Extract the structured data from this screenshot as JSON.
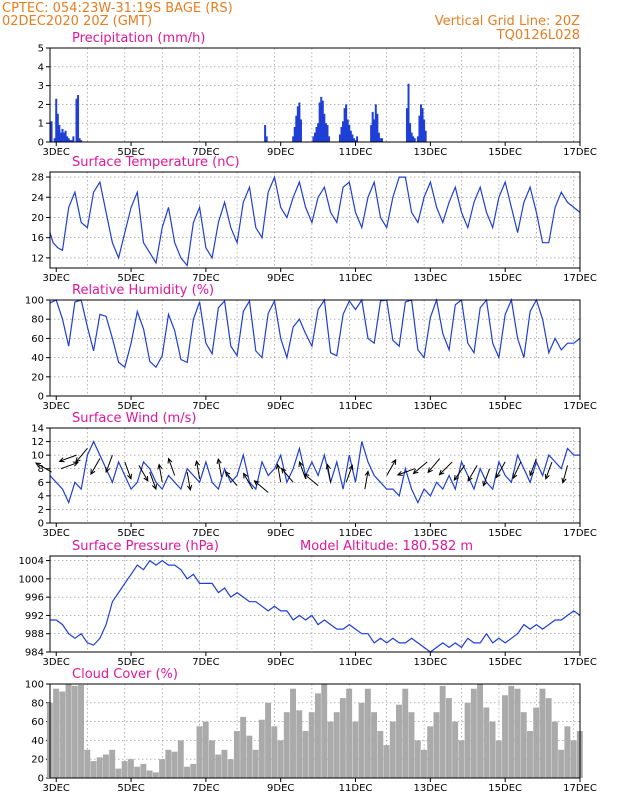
{
  "header": {
    "left_line1": "CPTEC:  054:23W-31:19S  BAGE (RS)",
    "left_line2": "02DEC2020 20Z (GMT)",
    "right_line1": "Vertical Grid Line: 20Z",
    "right_line2": "TQ0126L028"
  },
  "x_axis": {
    "start_hour": 20,
    "end_hour": 360,
    "tick_labels": [
      "3DEC",
      "5DEC",
      "7DEC",
      "9DEC",
      "11DEC",
      "13DEC",
      "15DEC",
      "17DEC"
    ],
    "tick_hours": [
      24,
      72,
      120,
      168,
      216,
      264,
      312,
      360
    ]
  },
  "colors": {
    "line": "#1f3fd6",
    "bar": "#1f3fd6",
    "cloud": "#aaaaaa",
    "title": "#e0179b",
    "header": "#e67e22"
  },
  "chart_data": [
    {
      "id": "precip",
      "type": "bar",
      "title": "Precipitation (mm/h)",
      "ylim": [
        0,
        5
      ],
      "yticks": [
        0,
        1,
        2,
        3,
        4,
        5
      ],
      "x": [
        21,
        23,
        24,
        25,
        26,
        27,
        28,
        29,
        30,
        31,
        32,
        33,
        34,
        35,
        37,
        38,
        39,
        40,
        158,
        159,
        176,
        177,
        178,
        179,
        180,
        181,
        189,
        190,
        191,
        192,
        193,
        194,
        195,
        196,
        197,
        198,
        199,
        206,
        207,
        208,
        209,
        210,
        211,
        212,
        213,
        214,
        215,
        216,
        217,
        226,
        227,
        228,
        229,
        230,
        231,
        232,
        233,
        249,
        250,
        251,
        252,
        253,
        254,
        256,
        257,
        258,
        259,
        260,
        261
      ],
      "values": [
        1.1,
        0.2,
        2.3,
        1.5,
        0.9,
        0.5,
        0.7,
        0.5,
        0.6,
        0.3,
        0.2,
        0.1,
        0.1,
        0.3,
        2.3,
        2.5,
        0.2,
        0.1,
        0.9,
        0.3,
        0.3,
        0.8,
        1.4,
        1.9,
        2.1,
        1.2,
        0.3,
        0.5,
        0.8,
        1.0,
        2.1,
        2.4,
        2.2,
        1.5,
        1.0,
        0.9,
        0.3,
        0.4,
        0.8,
        1.1,
        1.8,
        2.0,
        1.2,
        0.9,
        0.6,
        0.4,
        0.2,
        0.1,
        0.3,
        0.9,
        1.6,
        1.2,
        2.0,
        1.5,
        0.5,
        0.2,
        0.2,
        1.8,
        3.1,
        1.0,
        0.5,
        0.3,
        0.2,
        0.3,
        1.4,
        2.0,
        1.8,
        1.2,
        0.6
      ]
    },
    {
      "id": "temp",
      "type": "line",
      "title": "Surface Temperature (nC)",
      "ylim": [
        10,
        29
      ],
      "yticks": [
        12,
        16,
        20,
        24,
        28
      ],
      "x": [
        20,
        22,
        25,
        28,
        32,
        36,
        40,
        44,
        48,
        52,
        56,
        60,
        64,
        68,
        72,
        76,
        80,
        84,
        88,
        92,
        96,
        100,
        104,
        108,
        112,
        116,
        120,
        124,
        128,
        132,
        136,
        140,
        144,
        148,
        152,
        156,
        160,
        164,
        168,
        172,
        176,
        180,
        184,
        188,
        192,
        196,
        200,
        204,
        208,
        212,
        216,
        220,
        224,
        228,
        232,
        236,
        240,
        244,
        248,
        252,
        256,
        260,
        264,
        268,
        272,
        276,
        280,
        284,
        288,
        292,
        296,
        300,
        304,
        308,
        312,
        316,
        320,
        324,
        328,
        332,
        336,
        340,
        344,
        348,
        352,
        356,
        360
      ],
      "values": [
        17,
        15,
        14,
        13.5,
        22,
        25,
        19,
        18,
        25,
        27,
        21,
        15,
        12,
        17,
        22,
        25,
        15,
        13,
        11,
        18,
        22,
        15,
        12,
        10.5,
        19,
        22,
        14,
        12,
        19,
        23,
        18,
        15,
        23,
        26,
        18,
        16,
        25,
        28,
        22,
        20,
        24,
        27,
        22,
        19,
        24,
        26,
        21,
        19,
        26,
        27,
        21,
        18,
        24,
        27,
        20,
        18,
        24,
        28,
        28,
        21,
        19,
        24,
        27,
        22,
        19,
        23,
        26,
        21,
        18,
        23,
        26,
        21,
        18,
        24,
        27,
        22,
        17,
        23,
        26,
        21,
        15,
        15,
        22,
        25,
        23,
        22,
        21
      ]
    },
    {
      "id": "rh",
      "type": "line",
      "title": "Relative Humidity (%)",
      "ylim": [
        0,
        100
      ],
      "yticks": [
        0,
        20,
        40,
        60,
        80,
        100
      ],
      "x": [
        20,
        24,
        28,
        32,
        36,
        40,
        44,
        48,
        52,
        56,
        60,
        64,
        68,
        72,
        76,
        80,
        84,
        88,
        92,
        96,
        100,
        104,
        108,
        112,
        116,
        120,
        124,
        128,
        132,
        136,
        140,
        144,
        148,
        152,
        156,
        160,
        164,
        168,
        172,
        176,
        180,
        184,
        188,
        192,
        196,
        200,
        204,
        208,
        212,
        216,
        220,
        224,
        228,
        232,
        236,
        240,
        244,
        248,
        252,
        256,
        260,
        264,
        268,
        272,
        276,
        280,
        284,
        288,
        292,
        296,
        300,
        304,
        308,
        312,
        316,
        320,
        324,
        328,
        332,
        336,
        340,
        344,
        348,
        352,
        356,
        360
      ],
      "values": [
        97,
        100,
        80,
        52,
        98,
        100,
        72,
        47,
        85,
        83,
        60,
        35,
        30,
        55,
        88,
        70,
        36,
        30,
        42,
        85,
        68,
        38,
        35,
        80,
        98,
        55,
        44,
        92,
        99,
        52,
        42,
        88,
        99,
        47,
        40,
        86,
        99,
        60,
        40,
        72,
        80,
        65,
        52,
        90,
        100,
        45,
        42,
        85,
        99,
        90,
        100,
        60,
        55,
        99,
        100,
        58,
        52,
        98,
        100,
        48,
        40,
        82,
        100,
        65,
        48,
        95,
        100,
        55,
        45,
        92,
        100,
        55,
        40,
        85,
        100,
        60,
        40,
        88,
        100,
        80,
        45,
        60,
        48,
        55,
        55,
        60
      ]
    },
    {
      "id": "wind",
      "type": "line",
      "title": "Surface Wind (m/s)",
      "ylim": [
        0,
        14
      ],
      "yticks": [
        0,
        2,
        4,
        6,
        8,
        10,
        12,
        14
      ],
      "x": [
        20,
        24,
        28,
        32,
        36,
        40,
        44,
        48,
        52,
        56,
        60,
        64,
        68,
        72,
        76,
        80,
        84,
        88,
        92,
        96,
        100,
        104,
        108,
        112,
        116,
        120,
        124,
        128,
        132,
        136,
        140,
        144,
        148,
        152,
        156,
        160,
        164,
        168,
        172,
        176,
        180,
        184,
        188,
        192,
        196,
        200,
        204,
        208,
        212,
        216,
        220,
        224,
        228,
        232,
        236,
        240,
        244,
        248,
        252,
        256,
        260,
        264,
        268,
        272,
        276,
        280,
        284,
        288,
        292,
        296,
        300,
        304,
        308,
        312,
        316,
        320,
        324,
        328,
        332,
        336,
        340,
        344,
        348,
        352,
        356,
        360
      ],
      "values": [
        7,
        6,
        5,
        3,
        6,
        5,
        10,
        12,
        10,
        8,
        6,
        9,
        7,
        5,
        6,
        9,
        8,
        6,
        5,
        7,
        6,
        5,
        8,
        7,
        6,
        9,
        6,
        5,
        8,
        6,
        7,
        10,
        6,
        5,
        9,
        7,
        8,
        10,
        6,
        8,
        11,
        7,
        9,
        7,
        10,
        6,
        9,
        5,
        10,
        6,
        12,
        9,
        7,
        6,
        5,
        5,
        4,
        8,
        5,
        3,
        5,
        4,
        6,
        5,
        7,
        5,
        9,
        7,
        5,
        8,
        6,
        5,
        9,
        7,
        6,
        10,
        8,
        6,
        9,
        7,
        10,
        9,
        8,
        11,
        10,
        10
      ],
      "vectors": [
        {
          "x": 21,
          "speed": 7.5,
          "dir_deg": 150
        },
        {
          "x": 27,
          "speed": 8,
          "dir_deg": 20
        },
        {
          "x": 37,
          "speed": 10,
          "dir_deg": 200
        },
        {
          "x": 44,
          "speed": 11,
          "dir_deg": 230
        },
        {
          "x": 52,
          "speed": 9.5,
          "dir_deg": 240
        },
        {
          "x": 60,
          "speed": 10,
          "dir_deg": 250
        },
        {
          "x": 68,
          "speed": 9,
          "dir_deg": 290
        },
        {
          "x": 77,
          "speed": 8.5,
          "dir_deg": 300
        },
        {
          "x": 84,
          "speed": 7.5,
          "dir_deg": 290
        },
        {
          "x": 92,
          "speed": 6,
          "dir_deg": 100
        },
        {
          "x": 100,
          "speed": 7,
          "dir_deg": 110
        },
        {
          "x": 108,
          "speed": 7.5,
          "dir_deg": 280
        },
        {
          "x": 116,
          "speed": 6.5,
          "dir_deg": 100
        },
        {
          "x": 130,
          "speed": 6.8,
          "dir_deg": 100
        },
        {
          "x": 140,
          "speed": 5.5,
          "dir_deg": 130
        },
        {
          "x": 150,
          "speed": 5,
          "dir_deg": 120
        },
        {
          "x": 160,
          "speed": 4.5,
          "dir_deg": 140
        },
        {
          "x": 168,
          "speed": 6,
          "dir_deg": 100
        },
        {
          "x": 176,
          "speed": 6,
          "dir_deg": 130
        },
        {
          "x": 184,
          "speed": 6.5,
          "dir_deg": 110
        },
        {
          "x": 192,
          "speed": 5.5,
          "dir_deg": 140
        },
        {
          "x": 200,
          "speed": 6,
          "dir_deg": 100
        },
        {
          "x": 210,
          "speed": 6,
          "dir_deg": 70
        },
        {
          "x": 222,
          "speed": 5,
          "dir_deg": 80
        },
        {
          "x": 236,
          "speed": 7,
          "dir_deg": 60
        },
        {
          "x": 254,
          "speed": 8,
          "dir_deg": 200
        },
        {
          "x": 262,
          "speed": 9,
          "dir_deg": 220
        },
        {
          "x": 270,
          "speed": 9.5,
          "dir_deg": 230
        },
        {
          "x": 278,
          "speed": 9,
          "dir_deg": 225
        },
        {
          "x": 286,
          "speed": 8.5,
          "dir_deg": 235
        },
        {
          "x": 294,
          "speed": 8.5,
          "dir_deg": 240
        },
        {
          "x": 302,
          "speed": 8,
          "dir_deg": 250
        },
        {
          "x": 312,
          "speed": 9,
          "dir_deg": 240
        },
        {
          "x": 322,
          "speed": 9,
          "dir_deg": 245
        },
        {
          "x": 332,
          "speed": 9.5,
          "dir_deg": 250
        },
        {
          "x": 342,
          "speed": 9,
          "dir_deg": 250
        },
        {
          "x": 352,
          "speed": 8.5,
          "dir_deg": 255
        }
      ]
    },
    {
      "id": "pressure",
      "type": "line",
      "title": "Surface Pressure (hPa)",
      "annotation": "Model Altitude: 180.582 m",
      "ylim": [
        984,
        1005
      ],
      "yticks": [
        984,
        988,
        992,
        996,
        1000,
        1004
      ],
      "x": [
        20,
        24,
        28,
        32,
        36,
        40,
        44,
        48,
        52,
        56,
        60,
        64,
        68,
        72,
        76,
        80,
        84,
        88,
        92,
        96,
        100,
        104,
        108,
        112,
        116,
        120,
        124,
        128,
        132,
        136,
        140,
        144,
        148,
        152,
        156,
        160,
        164,
        168,
        172,
        176,
        180,
        184,
        188,
        192,
        196,
        200,
        204,
        208,
        212,
        216,
        220,
        224,
        228,
        232,
        236,
        240,
        244,
        248,
        252,
        256,
        260,
        264,
        268,
        272,
        276,
        280,
        284,
        288,
        292,
        296,
        300,
        304,
        308,
        312,
        316,
        320,
        324,
        328,
        332,
        336,
        340,
        344,
        348,
        352,
        356,
        360
      ],
      "values": [
        991,
        991,
        990,
        988,
        987,
        988,
        986,
        985.5,
        987,
        990,
        995,
        997,
        999,
        1001,
        1003,
        1002,
        1004,
        1003,
        1004,
        1003,
        1003,
        1002,
        1000,
        1001,
        999,
        999,
        999,
        997,
        998,
        996,
        997,
        996,
        995,
        995,
        994,
        993,
        994,
        993,
        993,
        991,
        992,
        991,
        992,
        990,
        991,
        990,
        989,
        989,
        990,
        989,
        988,
        988,
        986,
        987,
        986,
        987,
        986,
        986,
        987,
        986,
        985,
        984,
        985,
        986,
        985,
        986,
        985,
        987,
        986,
        986,
        988,
        986,
        987,
        986,
        987,
        988,
        990,
        989,
        990,
        989,
        990,
        991,
        991,
        992,
        993,
        992
      ]
    },
    {
      "id": "cloud",
      "type": "area",
      "title": "Cloud Cover (%)",
      "ylim": [
        0,
        100
      ],
      "yticks": [
        0,
        20,
        40,
        60,
        80,
        100
      ],
      "x": [
        20,
        24,
        28,
        32,
        36,
        40,
        44,
        48,
        52,
        56,
        60,
        64,
        68,
        72,
        76,
        80,
        84,
        88,
        92,
        96,
        100,
        104,
        108,
        112,
        116,
        120,
        124,
        128,
        132,
        136,
        140,
        144,
        148,
        152,
        156,
        160,
        164,
        168,
        172,
        176,
        180,
        184,
        188,
        192,
        196,
        200,
        204,
        208,
        212,
        216,
        220,
        224,
        228,
        232,
        236,
        240,
        244,
        248,
        252,
        256,
        260,
        264,
        268,
        272,
        276,
        280,
        284,
        288,
        292,
        296,
        300,
        304,
        308,
        312,
        316,
        320,
        324,
        328,
        332,
        336,
        340,
        344,
        348,
        352,
        356,
        360
      ],
      "values": [
        80,
        95,
        92,
        100,
        98,
        99,
        30,
        18,
        22,
        25,
        30,
        10,
        18,
        20,
        12,
        15,
        8,
        6,
        20,
        30,
        28,
        40,
        12,
        15,
        55,
        60,
        40,
        25,
        30,
        20,
        50,
        65,
        45,
        30,
        62,
        80,
        55,
        40,
        70,
        95,
        72,
        50,
        70,
        90,
        100,
        60,
        70,
        85,
        95,
        60,
        80,
        95,
        70,
        50,
        35,
        60,
        78,
        95,
        70,
        40,
        30,
        55,
        70,
        98,
        85,
        60,
        40,
        80,
        95,
        100,
        75,
        60,
        40,
        88,
        98,
        95,
        70,
        50,
        75,
        95,
        85,
        60,
        30,
        55,
        40,
        50
      ]
    }
  ]
}
